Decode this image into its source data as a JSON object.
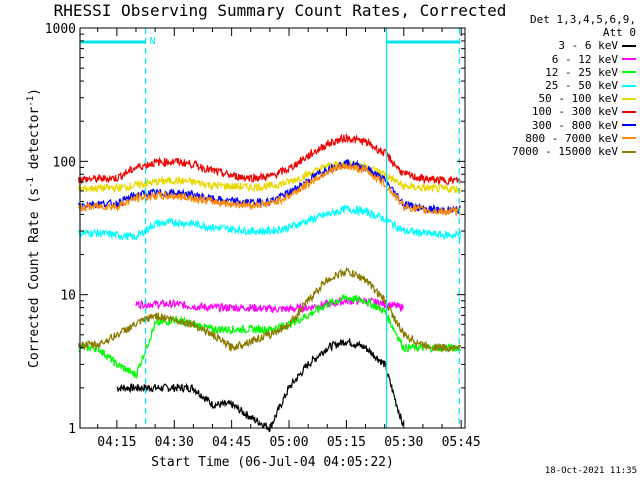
{
  "chart_data": {
    "type": "line",
    "title": "RHESSI Observing Summary Count Rates, Corrected",
    "xlabel": "Start Time (06-Jul-04 04:05:22)",
    "ylabel": "Corrected Count Rate (s",
    "ylabel_sup": "-1",
    "ylabel_tail": " detector",
    "ylabel_tail_sup": "-1",
    "ylabel_close": ")",
    "y_scale": "log",
    "ylim": [
      1,
      1000
    ],
    "xlim": [
      "04:05:22",
      "05:46:00"
    ],
    "x_ticks": [
      "04:15",
      "04:30",
      "04:45",
      "05:00",
      "05:15",
      "05:30",
      "05:45"
    ],
    "y_ticks": [
      "1",
      "10",
      "100",
      "1000"
    ],
    "legend_header": [
      "Det 1,3,4,5,6,9,",
      "Att 0"
    ],
    "legend_position": "top-right outside",
    "timestamp": "18-Oct-2021 11:35",
    "night_marker": "N",
    "markers": {
      "solid_vertical": [
        "04:05:22",
        "05:25:30"
      ],
      "dashed_vertical": [
        "04:22:30",
        "05:44:30"
      ],
      "top_bars": [
        [
          "04:05:22",
          "04:22:30"
        ],
        [
          "05:25:30",
          "05:44:30"
        ]
      ]
    },
    "series": [
      {
        "name": "3 - 6 keV",
        "color": "#000000",
        "x": [
          "04:15",
          "04:20",
          "04:25",
          "04:30",
          "04:35",
          "04:40",
          "04:45",
          "04:50",
          "04:55",
          "05:00",
          "05:05",
          "05:10",
          "05:15",
          "05:20",
          "05:25",
          "05:30"
        ],
        "y": [
          2,
          2,
          2,
          2,
          2,
          1.5,
          1.5,
          1.2,
          1,
          2,
          3,
          4,
          4.5,
          4,
          3,
          1
        ]
      },
      {
        "name": "6 - 12 keV",
        "color": "#ff00ff",
        "x": [
          "04:20",
          "04:25",
          "04:30",
          "04:35",
          "04:40",
          "04:45",
          "04:50",
          "04:55",
          "05:00",
          "05:05",
          "05:10",
          "05:15",
          "05:20",
          "05:25",
          "05:30"
        ],
        "y": [
          8.5,
          8.5,
          8.5,
          8.2,
          8.0,
          8.0,
          8.0,
          7.8,
          7.8,
          8.0,
          8.5,
          9.0,
          9.0,
          8.5,
          8.0
        ]
      },
      {
        "name": "12 - 25 keV",
        "color": "#00ff00",
        "x": [
          "04:05",
          "04:10",
          "04:15",
          "04:20",
          "04:25",
          "04:30",
          "04:35",
          "04:40",
          "04:45",
          "04:50",
          "04:55",
          "05:00",
          "05:05",
          "05:10",
          "05:15",
          "05:20",
          "05:25",
          "05:30",
          "05:35",
          "05:40",
          "05:45"
        ],
        "y": [
          4.0,
          4.0,
          3.0,
          2.5,
          6.0,
          6.5,
          6.0,
          5.5,
          5.5,
          5.5,
          5.5,
          6.0,
          7.0,
          8.5,
          9.5,
          9.0,
          7.5,
          4.0,
          4.0,
          4.0,
          4.0
        ]
      },
      {
        "name": "25 - 50 keV",
        "color": "#00ffff",
        "x": [
          "04:05",
          "04:10",
          "04:15",
          "04:20",
          "04:25",
          "04:30",
          "04:35",
          "04:40",
          "04:45",
          "04:50",
          "04:55",
          "05:00",
          "05:05",
          "05:10",
          "05:15",
          "05:20",
          "05:25",
          "05:30",
          "05:35",
          "05:40",
          "05:45"
        ],
        "y": [
          29,
          29,
          28,
          27,
          34,
          35,
          34,
          32,
          31,
          30,
          30,
          32,
          36,
          40,
          44,
          42,
          37,
          30,
          29,
          28,
          28
        ]
      },
      {
        "name": "50 - 100 keV",
        "color": "#e8d800",
        "x": [
          "04:05",
          "04:10",
          "04:15",
          "04:20",
          "04:25",
          "04:30",
          "04:35",
          "04:40",
          "04:45",
          "04:50",
          "04:55",
          "05:00",
          "05:05",
          "05:10",
          "05:15",
          "05:20",
          "05:25",
          "05:30",
          "05:35",
          "05:40",
          "05:45"
        ],
        "y": [
          62,
          63,
          63,
          66,
          70,
          72,
          70,
          66,
          65,
          64,
          65,
          70,
          80,
          92,
          97,
          92,
          80,
          65,
          63,
          62,
          62
        ]
      },
      {
        "name": "100 - 300 keV",
        "color": "#ee0000",
        "x": [
          "04:05",
          "04:10",
          "04:15",
          "04:20",
          "04:25",
          "04:30",
          "04:35",
          "04:40",
          "04:45",
          "04:50",
          "04:55",
          "05:00",
          "05:05",
          "05:10",
          "05:15",
          "05:20",
          "05:25",
          "05:30",
          "05:35",
          "05:40",
          "05:45"
        ],
        "y": [
          73,
          74,
          75,
          90,
          98,
          100,
          95,
          85,
          78,
          75,
          77,
          88,
          110,
          135,
          150,
          140,
          115,
          80,
          74,
          72,
          72
        ]
      },
      {
        "name": "300 - 800 keV",
        "color": "#0000ff",
        "x": [
          "04:05",
          "04:10",
          "04:15",
          "04:20",
          "04:25",
          "04:30",
          "04:35",
          "04:40",
          "04:45",
          "04:50",
          "04:55",
          "05:00",
          "05:05",
          "05:10",
          "05:15",
          "05:20",
          "05:25",
          "05:30",
          "05:35",
          "05:40",
          "05:45"
        ],
        "y": [
          47,
          48,
          48,
          56,
          58,
          58,
          56,
          52,
          50,
          49,
          50,
          58,
          72,
          88,
          97,
          90,
          72,
          48,
          44,
          43,
          43
        ]
      },
      {
        "name": "800 - 7000 keV",
        "color": "#ff8800",
        "x": [
          "04:05",
          "04:10",
          "04:15",
          "04:20",
          "04:25",
          "04:30",
          "04:35",
          "04:40",
          "04:45",
          "04:50",
          "04:55",
          "05:00",
          "05:05",
          "05:10",
          "05:15",
          "05:20",
          "05:25",
          "05:30",
          "05:35",
          "05:40",
          "05:45"
        ],
        "y": [
          45,
          46,
          46,
          53,
          55,
          55,
          53,
          50,
          48,
          47,
          48,
          55,
          68,
          84,
          92,
          86,
          68,
          46,
          43,
          42,
          42
        ]
      },
      {
        "name": "7000 - 15000 keV",
        "color": "#8a7a00",
        "x": [
          "04:05",
          "04:10",
          "04:15",
          "04:20",
          "04:25",
          "04:30",
          "04:35",
          "04:40",
          "04:45",
          "04:50",
          "04:55",
          "05:00",
          "05:05",
          "05:10",
          "05:15",
          "05:20",
          "05:25",
          "05:30",
          "05:35",
          "05:40",
          "05:45"
        ],
        "y": [
          4.2,
          4.2,
          5,
          6,
          7,
          6.5,
          6,
          5,
          4,
          4.5,
          5,
          6,
          9,
          13,
          15,
          13,
          9,
          5,
          4.2,
          4.0,
          4.0
        ]
      }
    ]
  }
}
